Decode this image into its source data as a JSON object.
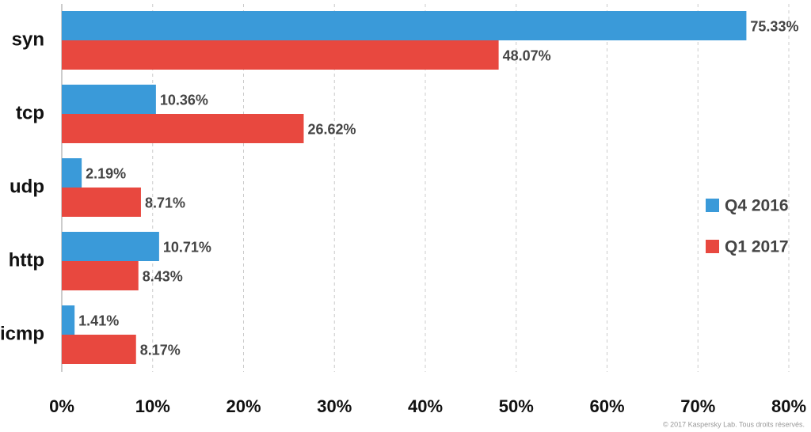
{
  "chart_data": {
    "type": "hbar",
    "categories": [
      "syn",
      "tcp",
      "udp",
      "http",
      "icmp"
    ],
    "series": [
      {
        "name": "Q4 2016",
        "color": "#3a9ad9",
        "values": [
          75.33,
          10.36,
          2.19,
          10.71,
          1.41
        ],
        "value_labels": [
          "75.33%",
          "10.36%",
          "2.19%",
          "10.71%",
          "1.41%"
        ]
      },
      {
        "name": "Q1 2017",
        "color": "#e8483f",
        "values": [
          48.07,
          26.62,
          8.71,
          8.43,
          8.17
        ],
        "value_labels": [
          "48.07%",
          "26.62%",
          "8.71%",
          "8.43%",
          "8.17%"
        ]
      }
    ],
    "xlim": [
      0,
      80
    ],
    "xticks": [
      {
        "value": 0,
        "label": "0%"
      },
      {
        "value": 10,
        "label": "10%"
      },
      {
        "value": 20,
        "label": "20%"
      },
      {
        "value": 30,
        "label": "30%"
      },
      {
        "value": 40,
        "label": "40%"
      },
      {
        "value": 50,
        "label": "50%"
      },
      {
        "value": 60,
        "label": "60%"
      },
      {
        "value": 70,
        "label": "70%"
      },
      {
        "value": 80,
        "label": "80%"
      }
    ],
    "grid": true,
    "legend": "right",
    "footnote": "© 2017 Kaspersky Lab. Tous droits réservés."
  }
}
